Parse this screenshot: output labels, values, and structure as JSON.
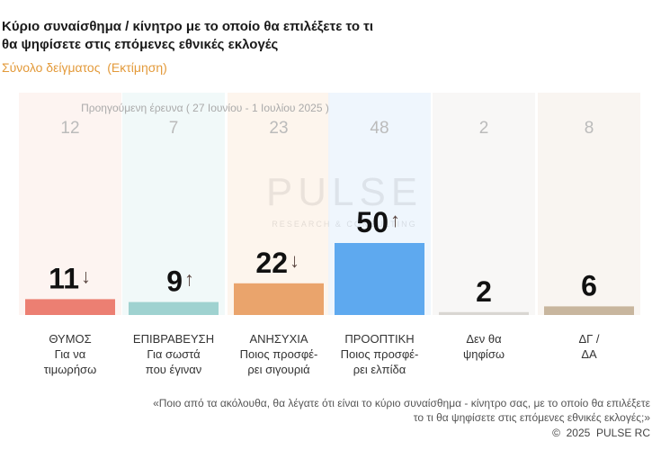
{
  "chart_data": {
    "type": "bar",
    "title": "Κύριο συναίσθημα / κίνητρο με το οποίο θα επιλέξετε το τι θα ψηφίσετε στις επόμενες εθνικές εκλογές",
    "subtitle": "Σύνολο δείγματος  (Εκτίμηση)",
    "watermark": "PULSE",
    "watermark_subtitle": "RESEARCH & CONSULTING",
    "categories": [
      "ΘΥΜΟΣ\nΓια να\nτιμωρήσω",
      "ΕΠΙΒΡΑΒΕΥΣΗ\nΓια σωστά\nπου έγιναν",
      "ΑΝΗΣΥΧΙΑ\nΠοιος προσφέ-\nρει σιγουριά",
      "ΠΡΟΟΠΤΙΚΗ\nΠοιος προσφέ-\nρει ελπίδα",
      "Δεν θα\nψηφίσω",
      "ΔΓ /\nΔΑ"
    ],
    "colors": [
      "#ec7f72",
      "#9fd2d0",
      "#eaa46c",
      "#5ea9ef",
      "#d9d6d2",
      "#c8b69e"
    ],
    "panel_colors": [
      "#fdf1ee",
      "#eef7f7",
      "#fdf2e8",
      "#ebf4fd",
      "#f6f5f4",
      "#f7f3ee"
    ],
    "series": [
      {
        "values": [
          11,
          9,
          22,
          50,
          2,
          6
        ],
        "trend": [
          "↓",
          "↑",
          "↓",
          "↑",
          null,
          null
        ]
      },
      {
        "name": "Προηγούμενη έρευνα ( 27 Ιουνίου - 1 Ιουλίου 2025 )",
        "values": [
          12,
          7,
          23,
          48,
          2,
          8
        ]
      }
    ],
    "question": "«Ποιο από τα ακόλουθα, θα λέγατε ότι είναι το κύριο συναίσθημα - κίνητρο σας, με το οποίο θα επιλέξετε το τι θα ψηφίσετε στις επόμενες εθνικές εκλογές;»",
    "copyright": "©  2025  PULSE RC"
  }
}
